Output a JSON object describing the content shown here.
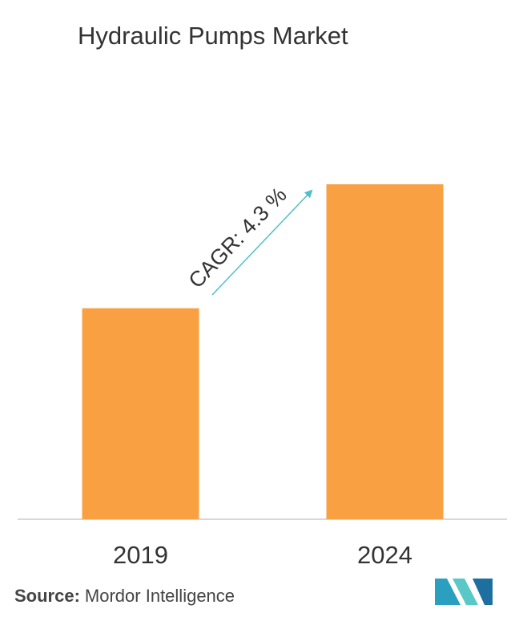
{
  "chart_data": {
    "type": "bar",
    "title": "Hydraulic Pumps Market",
    "categories": [
      "2019",
      "2024"
    ],
    "values": [
      63,
      100
    ],
    "color": "#f9a043",
    "ylim": [
      0,
      100
    ],
    "annotation": "CAGR: 4.3 %",
    "source_label": "Source:",
    "source": "Mordor Intelligence"
  }
}
